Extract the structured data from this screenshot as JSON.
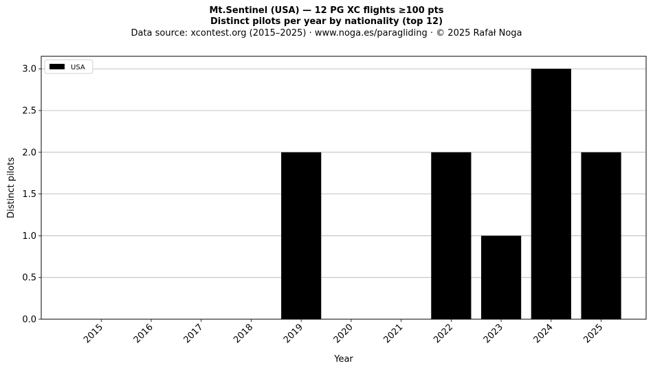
{
  "title_line1": "Mt.Sentinel (USA)  —  12 PG XC flights ≥100 pts",
  "title_line2": "Distinct pilots per year by nationality (top 12)",
  "subtitle": "Data source: xcontest.org (2015–2025)  ·  www.noga.es/paragliding  ·  © 2025 Rafał Noga",
  "chart_data": {
    "type": "bar",
    "categories": [
      "2015",
      "2016",
      "2017",
      "2018",
      "2019",
      "2020",
      "2021",
      "2022",
      "2023",
      "2024",
      "2025"
    ],
    "series": [
      {
        "name": "USA",
        "values": [
          0,
          0,
          0,
          0,
          2,
          0,
          0,
          2,
          1,
          3,
          2
        ],
        "color": "#000000"
      }
    ],
    "xlabel": "Year",
    "ylabel": "Distinct pilots",
    "ylim": [
      0,
      3.15
    ],
    "yticks": [
      "0.0",
      "0.5",
      "1.0",
      "1.5",
      "2.0",
      "2.5",
      "3.0"
    ],
    "grid": "y",
    "legend": "top-left"
  }
}
